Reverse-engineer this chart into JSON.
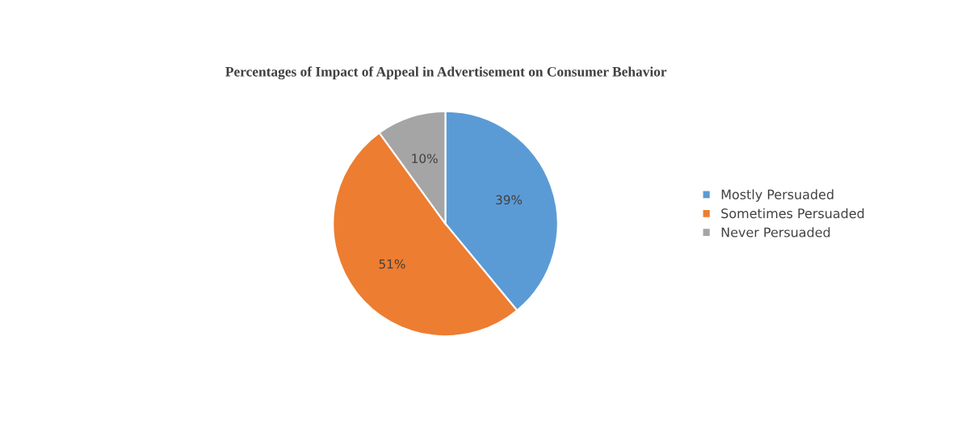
{
  "chart_data": {
    "type": "pie",
    "title": "Percentages of Impact of Appeal in Advertisement on Consumer Behavior",
    "categories": [
      "Mostly Persuaded",
      "Sometimes Persuaded",
      "Never Persuaded"
    ],
    "values": [
      39,
      51,
      10
    ],
    "colors": [
      "#5b9bd5",
      "#ed7d31",
      "#a5a5a5"
    ],
    "value_labels": [
      "39%",
      "51%",
      "10%"
    ],
    "legend": "right"
  }
}
